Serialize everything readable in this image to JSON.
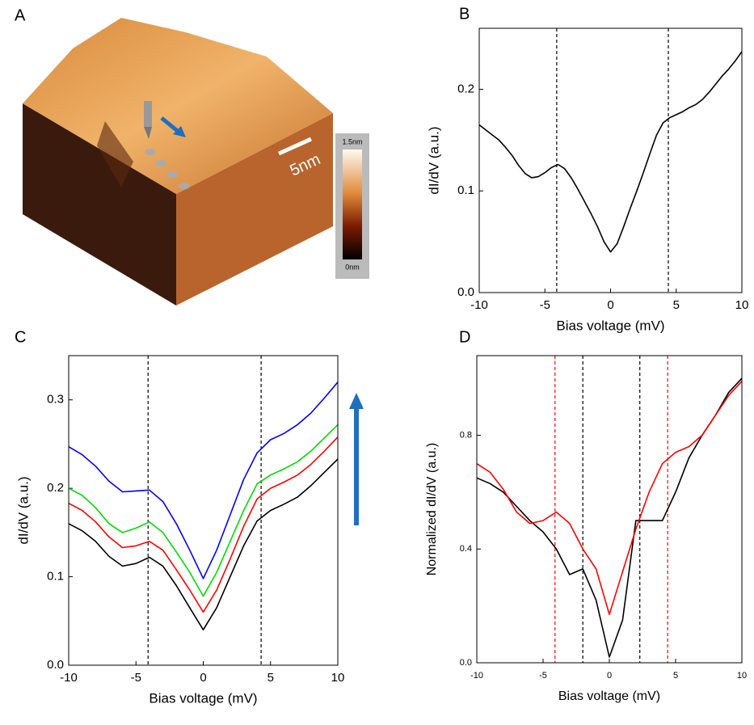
{
  "panel_a": {
    "label": "A",
    "scale_bar": "5nm",
    "colorbar_max": "1.5nm",
    "colorbar_min": "0nm"
  },
  "chart_data": [
    {
      "type": "line",
      "panel": "B",
      "xlabel": "Bias voltage (mV)",
      "ylabel": "dI/dV (a.u.)",
      "x": [
        -10,
        -9.5,
        -9,
        -8.5,
        -8,
        -7.5,
        -7,
        -6.5,
        -6,
        -5.5,
        -5,
        -4.5,
        -4,
        -3.5,
        -3,
        -2.5,
        -2,
        -1.5,
        -1,
        -0.5,
        0,
        0.5,
        1,
        1.5,
        2,
        2.5,
        3,
        3.5,
        4,
        4.5,
        5,
        5.5,
        6,
        6.5,
        7,
        7.5,
        8,
        8.5,
        9,
        9.5,
        10
      ],
      "series": [
        {
          "color": "#000000",
          "values": [
            0.165,
            0.16,
            0.155,
            0.15,
            0.143,
            0.135,
            0.125,
            0.117,
            0.113,
            0.114,
            0.118,
            0.123,
            0.126,
            0.122,
            0.113,
            0.102,
            0.09,
            0.078,
            0.065,
            0.05,
            0.04,
            0.048,
            0.065,
            0.083,
            0.1,
            0.118,
            0.137,
            0.155,
            0.167,
            0.172,
            0.175,
            0.178,
            0.182,
            0.185,
            0.19,
            0.197,
            0.205,
            0.213,
            0.22,
            0.228,
            0.237
          ]
        }
      ],
      "vlines": [
        {
          "x": -4.1,
          "color": "#000000"
        },
        {
          "x": 4.4,
          "color": "#000000"
        }
      ],
      "xlim": [
        -10,
        10
      ],
      "xticks": [
        -10,
        -5,
        0,
        5,
        10
      ],
      "ylim": [
        0,
        0.26
      ],
      "yticks": [
        {
          "value": 0,
          "label": "0.0"
        },
        0.1,
        0.2
      ]
    },
    {
      "type": "line",
      "panel": "C",
      "xlabel": "Bias voltage (mV)",
      "ylabel": "dI/dV (a.u.)",
      "x": [
        -10,
        -9,
        -8,
        -7,
        -6,
        -5,
        -4,
        -3,
        -2,
        -1,
        0,
        1,
        2,
        3,
        4,
        5,
        6,
        7,
        8,
        9,
        10
      ],
      "series": [
        {
          "color": "#000000",
          "values": [
            0.16,
            0.152,
            0.14,
            0.123,
            0.112,
            0.115,
            0.122,
            0.112,
            0.09,
            0.065,
            0.04,
            0.065,
            0.1,
            0.135,
            0.163,
            0.175,
            0.182,
            0.19,
            0.203,
            0.218,
            0.233
          ]
        },
        {
          "color": "#ff0000",
          "values": [
            0.183,
            0.175,
            0.162,
            0.145,
            0.133,
            0.135,
            0.14,
            0.13,
            0.108,
            0.085,
            0.06,
            0.085,
            0.12,
            0.157,
            0.188,
            0.2,
            0.207,
            0.215,
            0.227,
            0.242,
            0.258
          ]
        },
        {
          "color": "#00dd00",
          "values": [
            0.2,
            0.192,
            0.178,
            0.16,
            0.15,
            0.155,
            0.162,
            0.15,
            0.128,
            0.105,
            0.078,
            0.105,
            0.14,
            0.175,
            0.205,
            0.215,
            0.222,
            0.23,
            0.242,
            0.257,
            0.272
          ]
        },
        {
          "color": "#0000ff",
          "values": [
            0.247,
            0.238,
            0.225,
            0.208,
            0.196,
            0.197,
            0.198,
            0.185,
            0.16,
            0.13,
            0.098,
            0.13,
            0.17,
            0.21,
            0.24,
            0.255,
            0.262,
            0.272,
            0.285,
            0.302,
            0.32
          ]
        }
      ],
      "vlines": [
        {
          "x": -4.1,
          "color": "#000000"
        },
        {
          "x": 4.3,
          "color": "#000000"
        }
      ],
      "xlim": [
        -10,
        10
      ],
      "xticks": [
        -10,
        -5,
        0,
        5,
        10
      ],
      "ylim": [
        0,
        0.35
      ],
      "yticks": [
        {
          "value": 0,
          "label": "0.0"
        },
        0.1,
        0.2,
        0.3
      ]
    },
    {
      "type": "line",
      "panel": "D",
      "xlabel": "Bias voltage (mV)",
      "ylabel": "Normalized dI/dV (a.u.)",
      "x": [
        -10,
        -9,
        -8,
        -7,
        -6,
        -5,
        -4,
        -3,
        -2,
        -1,
        0,
        1,
        2,
        3,
        4,
        5,
        6,
        7,
        8,
        9,
        10
      ],
      "series": [
        {
          "color": "#000000",
          "values": [
            0.65,
            0.63,
            0.6,
            0.55,
            0.5,
            0.46,
            0.4,
            0.31,
            0.33,
            0.22,
            0.02,
            0.15,
            0.5,
            0.5,
            0.5,
            0.6,
            0.72,
            0.8,
            0.87,
            0.95,
            1.0
          ]
        },
        {
          "color": "#ff0000",
          "values": [
            0.7,
            0.67,
            0.61,
            0.53,
            0.49,
            0.5,
            0.53,
            0.49,
            0.4,
            0.33,
            0.17,
            0.32,
            0.47,
            0.6,
            0.7,
            0.74,
            0.76,
            0.8,
            0.87,
            0.94,
            0.99
          ]
        }
      ],
      "vlines": [
        {
          "x": -4.1,
          "color": "#ff0000"
        },
        {
          "x": -2,
          "color": "#000000"
        },
        {
          "x": 2.3,
          "color": "#000000"
        },
        {
          "x": 4.4,
          "color": "#ff0000"
        }
      ],
      "xlim": [
        -10,
        10
      ],
      "xticks": [
        -10,
        -5,
        0,
        5,
        10
      ],
      "ylim": [
        0,
        1.08
      ],
      "yticks": [
        {
          "value": 0,
          "label": "0.0"
        },
        0.4,
        0.8
      ]
    }
  ]
}
